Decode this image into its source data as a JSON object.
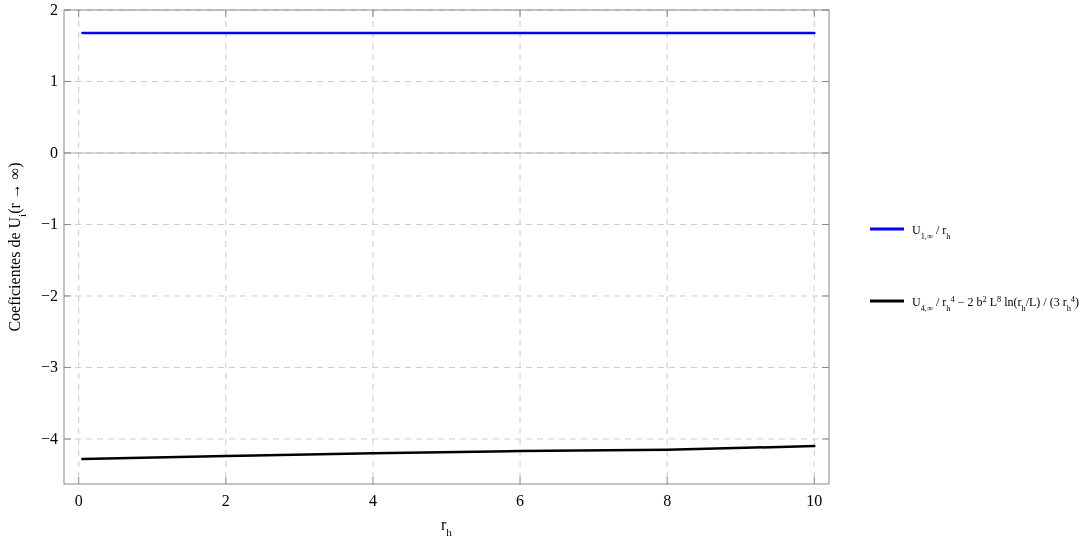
{
  "chart_data": {
    "type": "line",
    "xlabel": "r$_{h}$",
    "ylabel": "Coeficientes de U$_{i}$(r → ∞)",
    "xlim": [
      -0.2,
      10.2
    ],
    "ylim": [
      -4.63,
      2
    ],
    "xticks": [
      0,
      2,
      4,
      6,
      8,
      10
    ],
    "yticks": [
      -4,
      -3,
      -2,
      -1,
      0,
      1,
      2
    ],
    "grid": true,
    "legend": "right",
    "line_style": "solid",
    "marker": "none",
    "ref_lines": [
      {
        "axis": "y",
        "value": 0,
        "color": "#b0b0b0"
      }
    ],
    "series": [
      {
        "name": "U$_{1,∞}$ / r$_{h}$",
        "color": "#0000ff",
        "x": [
          0.05,
          10
        ],
        "values": [
          1.68,
          1.68
        ]
      },
      {
        "name": "U$_{4,∞}$ / r$_{h}$$^{4}$ − 2 b$^{2}$ L$^{8}$ ln(r$_{h}$/L) / (3 r$_{h}$$^{4}$)",
        "color": "#000000",
        "x": [
          0.05,
          2,
          4,
          6,
          8,
          10
        ],
        "values": [
          -4.28,
          -4.24,
          -4.2,
          -4.17,
          -4.15,
          -4.1
        ]
      }
    ]
  }
}
